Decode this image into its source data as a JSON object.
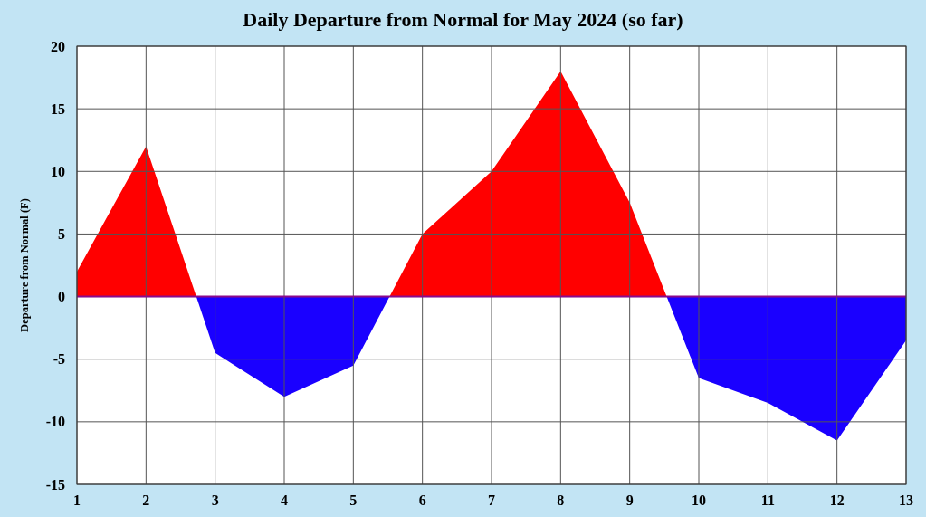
{
  "chart_data": {
    "type": "area",
    "title": "Daily Departure from Normal for May 2024 (so far)",
    "ylabel": "Departure from Normal (F)",
    "x": [
      1,
      2,
      3,
      4,
      5,
      6,
      7,
      8,
      9,
      10,
      11,
      12,
      13
    ],
    "xlim": [
      1,
      13
    ],
    "xticks": [
      1,
      2,
      3,
      4,
      5,
      6,
      7,
      8,
      9,
      10,
      11,
      12,
      13
    ],
    "ylim": [
      -15,
      20
    ],
    "yticks": [
      -15,
      -10,
      -5,
      0,
      5,
      10,
      15,
      20
    ],
    "grid": true,
    "series": [
      {
        "values": [
          2,
          12,
          -4.5,
          -8,
          -5.5,
          5,
          10,
          18,
          7.5,
          -6.5,
          -8.5,
          -11.5,
          -3.5
        ],
        "colors": [
          "#ff0000",
          "#ff0000",
          "#1a00ff",
          "#1a00ff",
          "#1a00ff",
          "#ff0000",
          "#ff0000",
          "#ff0000",
          "#ff0000",
          "#1a00ff",
          "#1a00ff",
          "#1a00ff",
          "#1a00ff"
        ]
      }
    ],
    "ref_lines": [
      {
        "axis": "y",
        "value": 0,
        "color": "#8b0a8b"
      }
    ]
  }
}
